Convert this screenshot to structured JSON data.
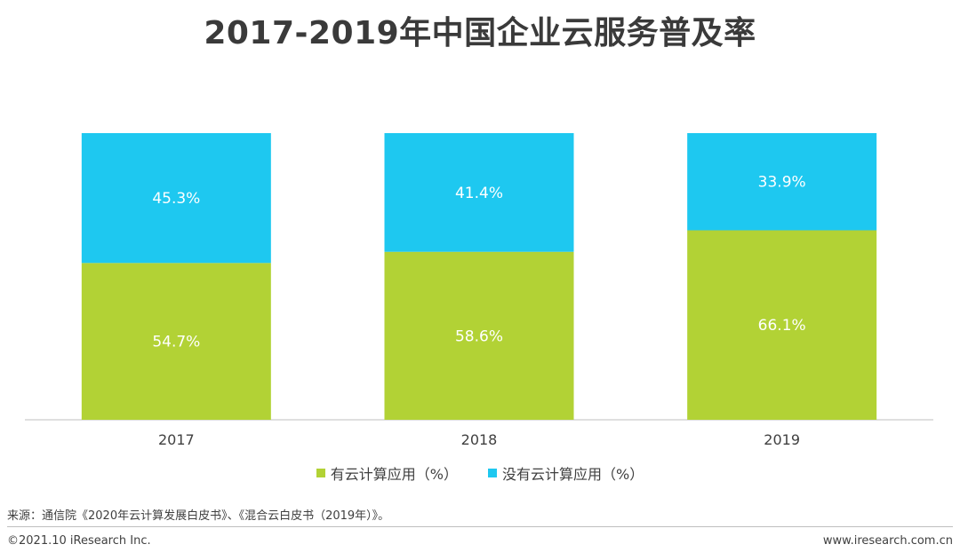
{
  "chart_data": {
    "type": "bar",
    "stacked": true,
    "title": "2017-2019年中国企业云服务普及率",
    "categories": [
      "2017",
      "2018",
      "2019"
    ],
    "series": [
      {
        "name": "有云计算应用（%）",
        "values": [
          54.7,
          58.6,
          66.1
        ],
        "labels": [
          "54.7%",
          "58.6%",
          "66.1%"
        ],
        "color": "#b2d235"
      },
      {
        "name": "没有云计算应用（%）",
        "values": [
          45.3,
          41.4,
          33.9
        ],
        "labels": [
          "45.3%",
          "41.4%",
          "33.9%"
        ],
        "color": "#1ec8f0"
      }
    ],
    "ylim": [
      0,
      100
    ],
    "xlabel": "",
    "ylabel": "",
    "legend_position": "bottom"
  },
  "footer": {
    "source": "来源：通信院《2020年云计算发展白皮书》、《混合云白皮书（2019年）》。",
    "copyright": "©2021.10 iResearch Inc.",
    "website": "www.iresearch.com.cn"
  },
  "colors": {
    "label_text": "#ffffff",
    "axis": "#bfbfbf"
  }
}
